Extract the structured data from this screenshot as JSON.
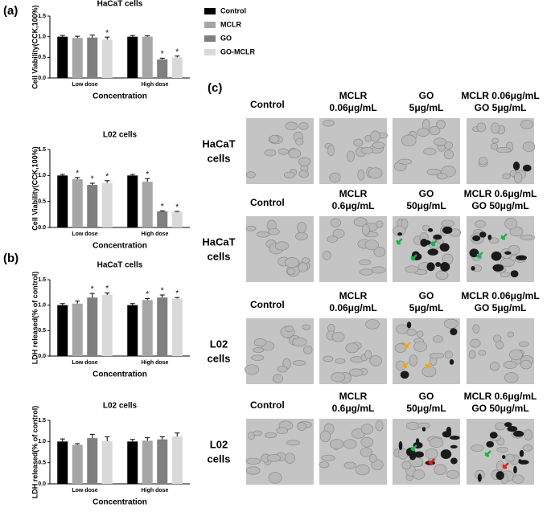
{
  "panel_labels": [
    "(a)",
    "(b)"
  ],
  "chart_data": [
    {
      "type": "bar",
      "title": "HaCaT cells",
      "x_label": "Concentration",
      "y_label": "Cell Viability(CCK,100%)",
      "categories": [
        "Low dose",
        "High dose"
      ],
      "ylim": [
        0,
        1.5
      ],
      "yticks": [
        {
          "value": 0,
          "label": "0.0"
        },
        0.5,
        {
          "value": 1,
          "label": "1.0"
        },
        1.5
      ],
      "legend": "right",
      "series": [
        {
          "name": "Control",
          "color": "#000000",
          "values": [
            1.0,
            1.0
          ],
          "errors": [
            0.03,
            0.03
          ],
          "significance": [
            null,
            null
          ]
        },
        {
          "name": "MCLR",
          "color": "#a6a6a6",
          "values": [
            0.97,
            1.0
          ],
          "errors": [
            0.04,
            0.02
          ],
          "significance": [
            null,
            null
          ]
        },
        {
          "name": "GO",
          "color": "#7f7f7f",
          "values": [
            0.98,
            0.45
          ],
          "errors": [
            0.06,
            0.03
          ],
          "significance": [
            null,
            "*"
          ]
        },
        {
          "name": "GO-MCLR",
          "color": "#d9d9d9",
          "values": [
            0.93,
            0.5
          ],
          "errors": [
            0.06,
            0.03
          ],
          "significance": [
            "*",
            "*"
          ]
        }
      ]
    },
    {
      "type": "bar",
      "title": "L02 cells",
      "x_label": "Concentration",
      "y_label": "Cell Viability(CCK,100%)",
      "categories": [
        "Low dose",
        "High dose"
      ],
      "ylim": [
        0,
        1.5
      ],
      "yticks": [
        {
          "value": 0,
          "label": "0.0"
        },
        0.5,
        {
          "value": 1,
          "label": "1.0"
        },
        1.5
      ],
      "series": [
        {
          "color": "#000000",
          "values": [
            1.0,
            1.0
          ],
          "errors": [
            0.02,
            0.02
          ],
          "significance": [
            null,
            null
          ]
        },
        {
          "color": "#a6a6a6",
          "values": [
            0.93,
            0.88
          ],
          "errors": [
            0.03,
            0.06
          ],
          "significance": [
            "*",
            "*"
          ]
        },
        {
          "color": "#7f7f7f",
          "values": [
            0.82,
            0.31
          ],
          "errors": [
            0.03,
            0.01
          ],
          "significance": [
            "*",
            "*"
          ]
        },
        {
          "color": "#d9d9d9",
          "values": [
            0.86,
            0.3
          ],
          "errors": [
            0.04,
            0.01
          ],
          "significance": [
            "*",
            "*"
          ]
        }
      ]
    },
    {
      "type": "bar",
      "title": "HaCaT cells",
      "x_label": "Concentration",
      "y_label": "LDH released(% of control)",
      "categories": [
        "Low dose",
        "High dose"
      ],
      "ylim": [
        0,
        1.5
      ],
      "yticks": [
        {
          "value": 0,
          "label": "0.0"
        },
        0.5,
        {
          "value": 1,
          "label": "1.0"
        },
        1.5
      ],
      "series": [
        {
          "color": "#000000",
          "values": [
            1.0,
            1.0
          ],
          "errors": [
            0.03,
            0.03
          ],
          "significance": [
            null,
            null
          ]
        },
        {
          "color": "#a6a6a6",
          "values": [
            1.03,
            1.1
          ],
          "errors": [
            0.05,
            0.03
          ],
          "significance": [
            null,
            "*"
          ]
        },
        {
          "color": "#7f7f7f",
          "values": [
            1.15,
            1.15
          ],
          "errors": [
            0.08,
            0.05
          ],
          "significance": [
            "*",
            "*"
          ]
        },
        {
          "color": "#d9d9d9",
          "values": [
            1.2,
            1.13
          ],
          "errors": [
            0.04,
            0.02
          ],
          "significance": [
            "*",
            "*"
          ]
        }
      ]
    },
    {
      "type": "bar",
      "title": "L02 cells",
      "x_label": "Concentration",
      "y_label": "LDH released(% of control)",
      "categories": [
        "Low dose",
        "High dose"
      ],
      "ylim": [
        0,
        1.5
      ],
      "yticks": [
        {
          "value": 0,
          "label": "0.0"
        },
        0.5,
        {
          "value": 1,
          "label": "1.0"
        },
        1.5
      ],
      "series": [
        {
          "color": "#000000",
          "values": [
            1.0,
            1.0
          ],
          "errors": [
            0.06,
            0.05
          ],
          "significance": [
            null,
            null
          ]
        },
        {
          "color": "#a6a6a6",
          "values": [
            0.92,
            1.02
          ],
          "errors": [
            0.03,
            0.07
          ],
          "significance": [
            null,
            null
          ]
        },
        {
          "color": "#7f7f7f",
          "values": [
            1.08,
            1.05
          ],
          "errors": [
            0.09,
            0.06
          ],
          "significance": [
            null,
            null
          ]
        },
        {
          "color": "#d9d9d9",
          "values": [
            1.01,
            1.12
          ],
          "errors": [
            0.1,
            0.08
          ],
          "significance": [
            null,
            null
          ]
        }
      ]
    }
  ],
  "panel_c": {
    "label": "(c)",
    "rows": [
      {
        "label": [
          "HaCaT",
          "cells"
        ],
        "headers": [
          [
            "Control"
          ],
          [
            "MCLR",
            "0.06μg/mL"
          ],
          [
            "GO",
            "5μg/mL"
          ],
          [
            "MCLR 0.06μg/mL",
            "GO 5μg/mL"
          ]
        ]
      },
      {
        "label": [
          "HaCaT",
          "cells"
        ],
        "headers": [
          [
            "Control"
          ],
          [
            "MCLR",
            "0.6μg/mL"
          ],
          [
            "GO",
            "50μg/mL"
          ],
          [
            "MCLR 0.6μg/mL",
            "GO 50μg/mL"
          ]
        ]
      },
      {
        "label": [
          "L02",
          "cells"
        ],
        "headers": [
          [
            "Control"
          ],
          [
            "MCLR",
            "0.06μg/mL"
          ],
          [
            "GO",
            "5μg/mL"
          ],
          [
            "MCLR 0.06μg/mL",
            "GO 5μg/mL"
          ]
        ]
      },
      {
        "label": [
          "L02",
          "cells"
        ],
        "headers": [
          [
            "Control"
          ],
          [
            "MCLR",
            "0.6μg/mL"
          ],
          [
            "GO",
            "50μg/mL"
          ],
          [
            "MCLR 0.6μg/mL",
            "GO 50μg/mL"
          ]
        ]
      }
    ]
  }
}
